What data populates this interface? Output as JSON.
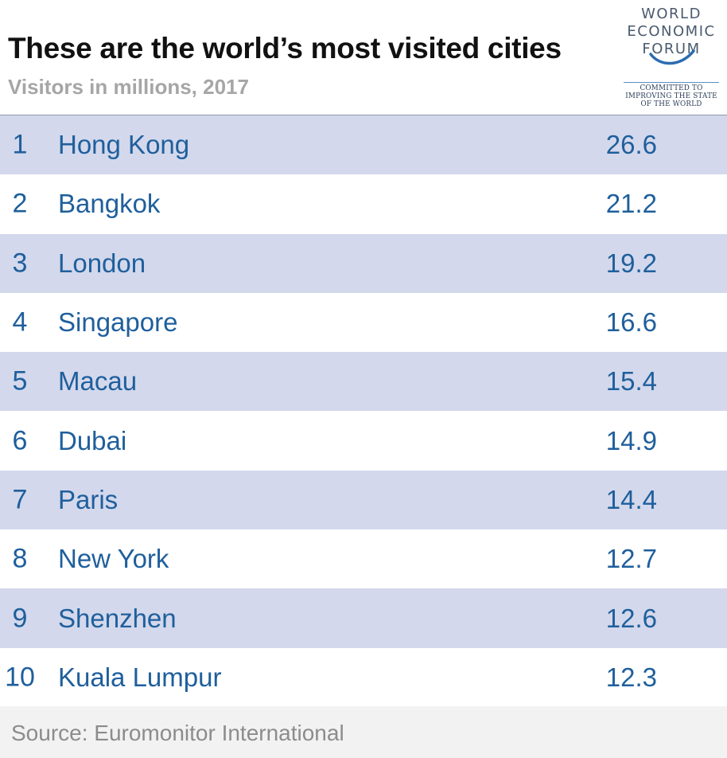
{
  "title": "These are the world’s most visited cities",
  "subtitle": "Visitors in millions, 2017",
  "logo": {
    "line1": "WORLD",
    "line2": "ECONOMIC",
    "line3": "FORUM",
    "tagline1": "COMMITTED TO",
    "tagline2": "IMPROVING THE STATE",
    "tagline3": "OF THE WORLD"
  },
  "source": "Source: Euromonitor International",
  "colors": {
    "accent": "#1f5f9c",
    "band": "#d3d8ec",
    "subtitle": "#a6a6a6"
  },
  "chart_data": {
    "type": "table",
    "columns": [
      "",
      "",
      ""
    ],
    "rows": [
      {
        "rank": "1",
        "city": "Hong Kong",
        "value": "26.6"
      },
      {
        "rank": "2",
        "city": "Bangkok",
        "value": "21.2"
      },
      {
        "rank": "3",
        "city": "London",
        "value": "19.2"
      },
      {
        "rank": "4",
        "city": "Singapore",
        "value": "16.6"
      },
      {
        "rank": "5",
        "city": "Macau",
        "value": "15.4"
      },
      {
        "rank": "6",
        "city": "Dubai",
        "value": "14.9"
      },
      {
        "rank": "7",
        "city": "Paris",
        "value": "14.4"
      },
      {
        "rank": "8",
        "city": "New York",
        "value": "12.7"
      },
      {
        "rank": "9",
        "city": "Shenzhen",
        "value": "12.6"
      },
      {
        "rank": "10",
        "city": "Kuala Lumpur",
        "value": "12.3"
      }
    ]
  }
}
